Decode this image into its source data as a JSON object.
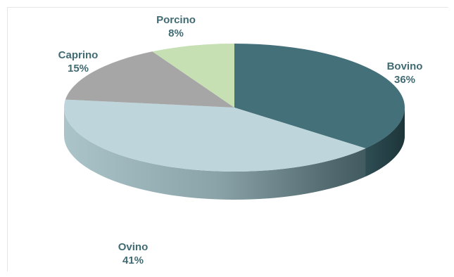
{
  "chart_data": {
    "type": "pie",
    "title": "",
    "slices": [
      {
        "name": "Bovino",
        "value": 36,
        "label": "36%",
        "color": "#44707a"
      },
      {
        "name": "Ovino",
        "value": 41,
        "label": "41%",
        "color": "#bed6db"
      },
      {
        "name": "Caprino",
        "value": 15,
        "label": "15%",
        "color": "#a6a6a6"
      },
      {
        "name": "Porcino",
        "value": 8,
        "label": "8%",
        "color": "#c6e0b4"
      }
    ],
    "style": "3d",
    "start_angle_deg": 0,
    "direction": "clockwise"
  }
}
